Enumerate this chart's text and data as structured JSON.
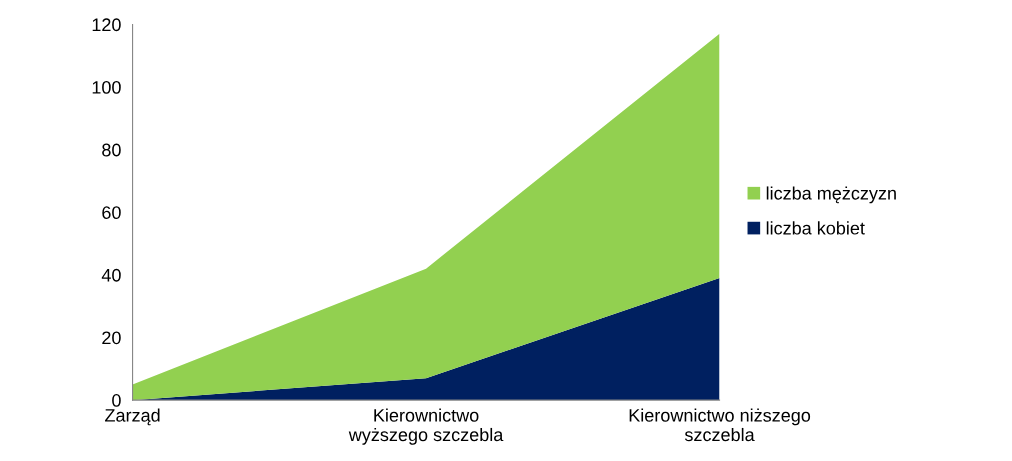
{
  "chart_data": {
    "type": "area",
    "stacked": true,
    "categories": [
      "Zarząd",
      "Kierownictwo\nwyższego szczebla",
      "Kierownictwo niższego\nszczebla"
    ],
    "series": [
      {
        "name": "liczba kobiet",
        "color": "#002060",
        "values": [
          0,
          7,
          39
        ]
      },
      {
        "name": "liczba mężczyzn",
        "color": "#92d050",
        "values": [
          5,
          35,
          78
        ]
      }
    ],
    "ylim": [
      0,
      120
    ],
    "yticks": [
      0,
      20,
      40,
      60,
      80,
      100,
      120
    ],
    "grid": false,
    "legend": "right"
  }
}
